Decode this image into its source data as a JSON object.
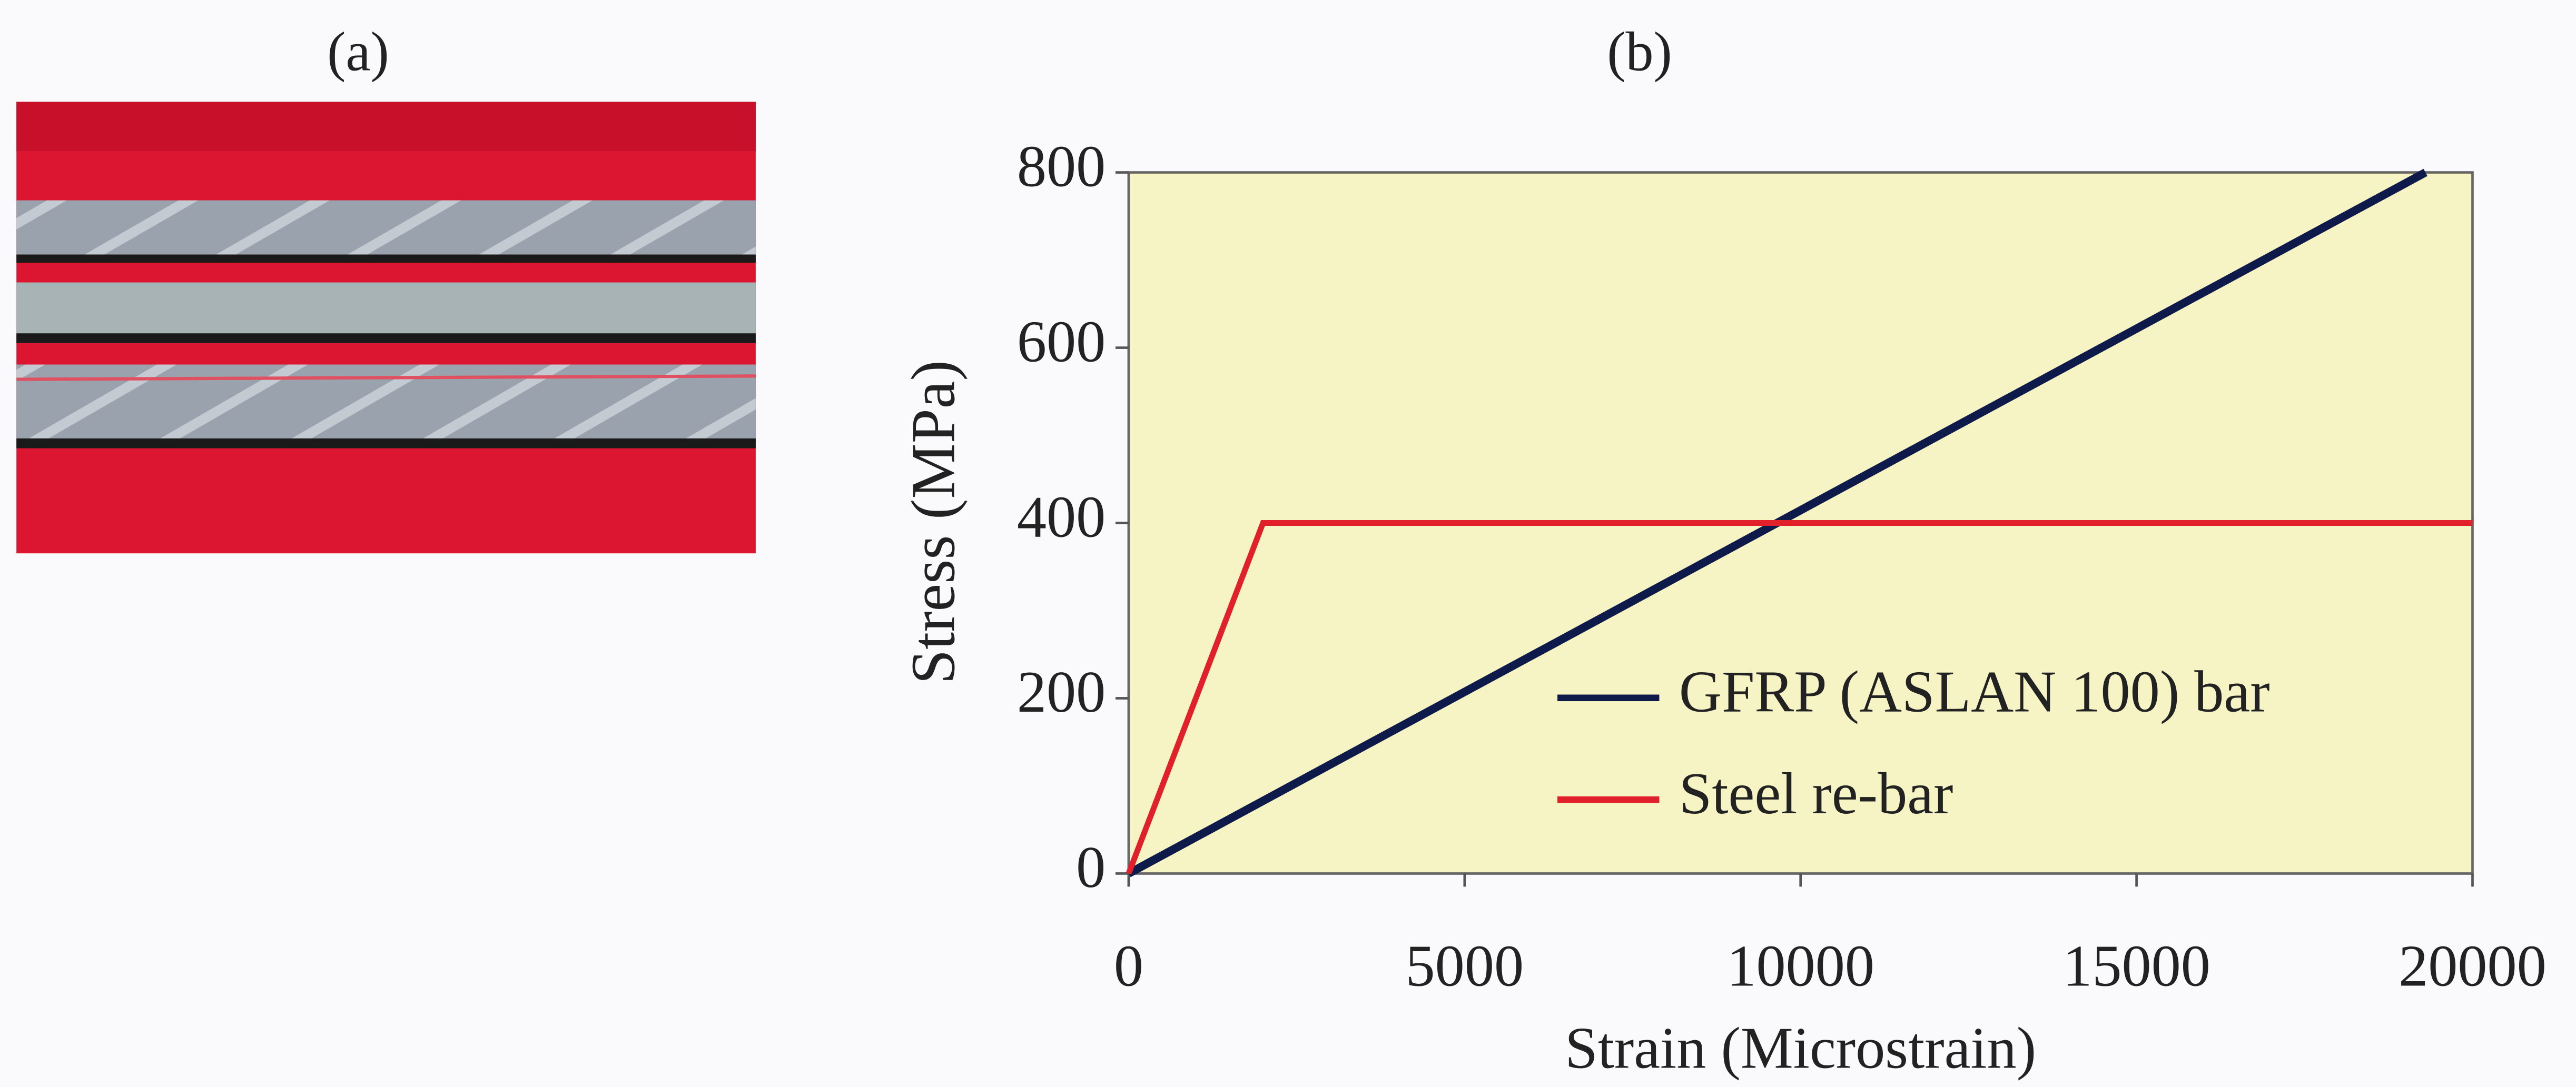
{
  "photo": {
    "label": "(a)"
  },
  "chart_data": {
    "type": "line",
    "title": "(b)",
    "x_label": "Strain (Microstrain)",
    "y_label": "Stress (MPa)",
    "xlim": [
      0,
      20000
    ],
    "xticks": [
      0,
      5000,
      10000,
      15000,
      20000
    ],
    "ylim": [
      0,
      800
    ],
    "yticks": [
      0,
      200,
      400,
      600,
      800
    ],
    "plot_background": "#f6f3c4",
    "legend": "lower right",
    "series": [
      {
        "name": "GFRP (ASLAN 100) bar",
        "color": "#0d1a4a",
        "x": [
          0,
          19300
        ],
        "values": [
          0,
          800
        ]
      },
      {
        "name": "Steel re-bar",
        "color": "#e0202a",
        "x": [
          0,
          2000,
          20000
        ],
        "values": [
          0,
          400,
          400
        ]
      }
    ]
  }
}
